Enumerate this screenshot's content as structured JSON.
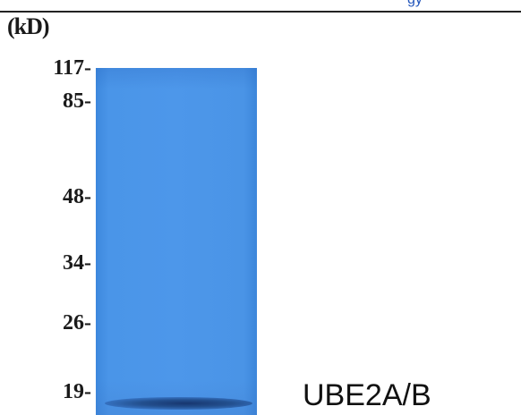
{
  "header": {
    "fragment_text": "gy"
  },
  "unit_label": "(kD)",
  "markers": [
    {
      "label": "117-",
      "kda": 117
    },
    {
      "label": "85-",
      "kda": 85
    },
    {
      "label": "48-",
      "kda": 48
    },
    {
      "label": "34-",
      "kda": 34
    },
    {
      "label": "26-",
      "kda": 26
    },
    {
      "label": "19-",
      "kda": 19
    }
  ],
  "protein_label": "UBE2A/B",
  "colors": {
    "lane": "#4a95e8",
    "band": "#1d4282",
    "header_text": "#2255bb"
  }
}
